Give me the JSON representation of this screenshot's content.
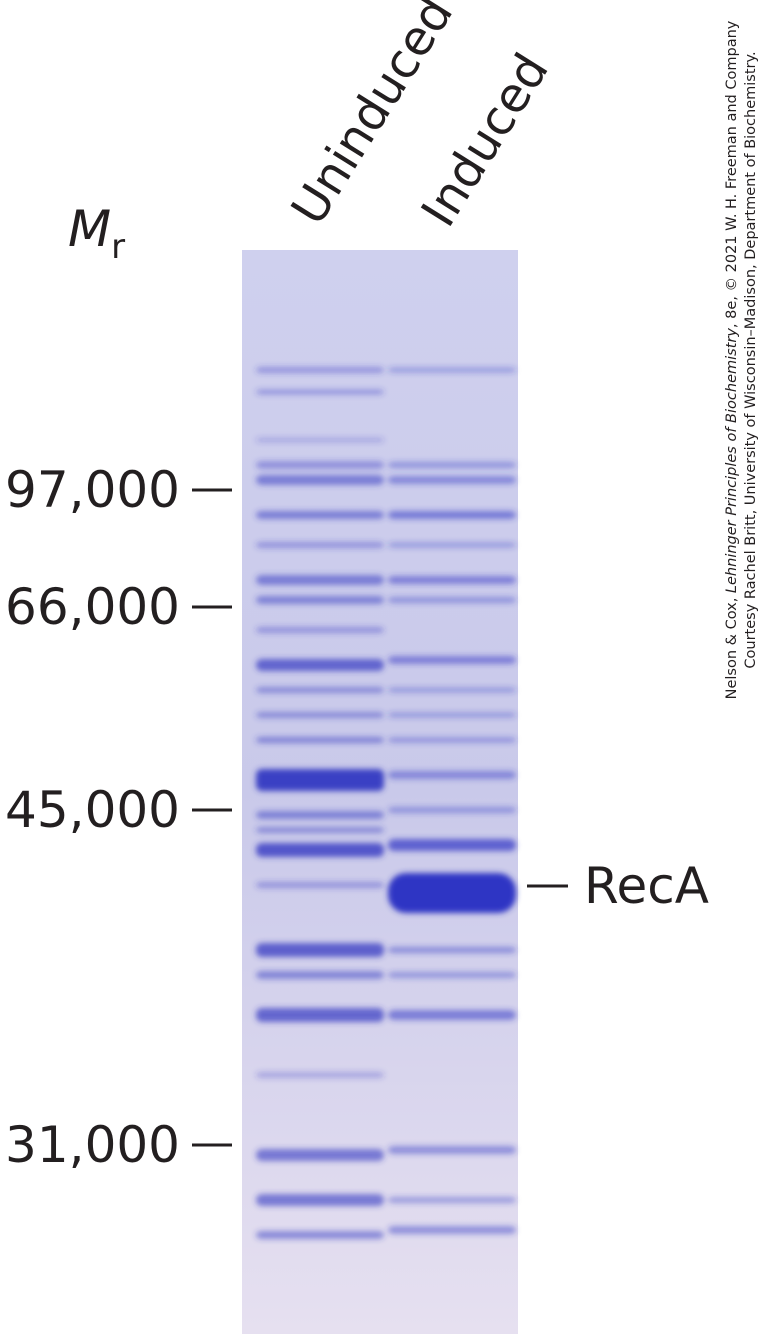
{
  "axis_label": {
    "symbol": "M",
    "subscript": "r"
  },
  "lanes": [
    "Uninduced",
    "Induced"
  ],
  "markers": [
    "97,000",
    "66,000",
    "45,000",
    "31,000"
  ],
  "band_label": "RecA",
  "credit": {
    "line1_prefix": "Nelson & Cox, ",
    "line1_italic": "Lehninger Principles of Biochemistry",
    "line1_suffix": ", 8e, © 2021 W. H. Freeman and Company",
    "line2": "Courtesy Rachel Britt, University of Wisconsin–Madison, Department of Biochemistry."
  }
}
